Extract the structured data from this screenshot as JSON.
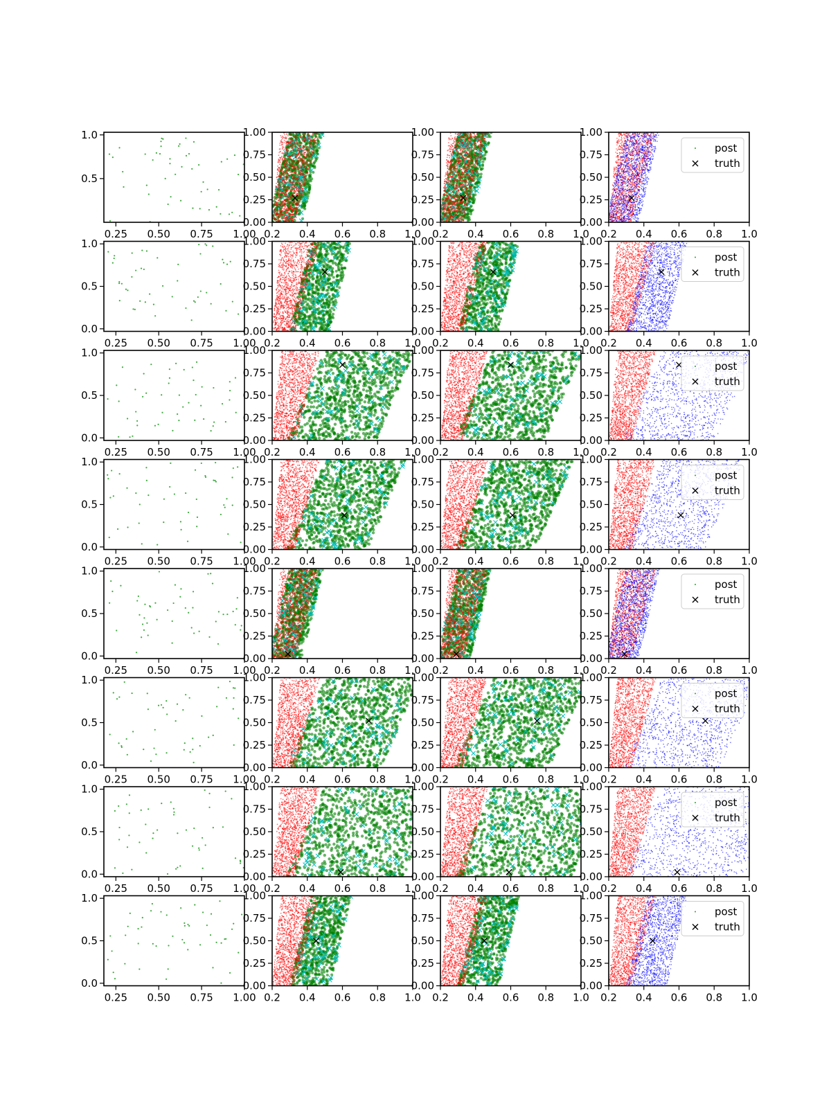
{
  "figure": {
    "background": "#ffffff"
  },
  "colors": {
    "scatter_green": "#2ca02c",
    "green": "#008000",
    "red": "#ff0000",
    "blue": "#0000ff",
    "cyan": "#00bfbf",
    "truth": "#000000",
    "axis": "#000000"
  },
  "legend": {
    "post_label": "post",
    "truth_label": "truth",
    "placement": "upper right"
  },
  "axes": {
    "col0": {
      "xlim": [
        0.18,
        1.0
      ],
      "xticks": [
        0.25,
        0.5,
        0.75,
        1.0
      ],
      "xtick_labels": [
        "0.25",
        "0.50",
        "0.75",
        "1.00"
      ],
      "ylim_first": [
        0.0,
        1.03
      ],
      "ylim_other": [
        -0.03,
        1.03
      ],
      "yticks_first": [
        0.5,
        1.0
      ],
      "ytick_labels_first": [
        "0.5",
        "1.0"
      ],
      "yticks_other": [
        0.0,
        0.5,
        1.0
      ],
      "ytick_labels_other": [
        "0.0",
        "0.5",
        "1.0"
      ]
    },
    "cols123": {
      "xlim": [
        0.2,
        1.0
      ],
      "ylim": [
        0.0,
        1.0
      ],
      "xticks": [
        0.2,
        0.4,
        0.6,
        0.8,
        1.0
      ],
      "xtick_labels": [
        "0.2",
        "0.4",
        "0.6",
        "0.8",
        "1.0"
      ],
      "yticks": [
        0.0,
        0.25,
        0.5,
        0.75,
        1.0
      ],
      "ytick_labels": [
        "0.00",
        "0.25",
        "0.50",
        "0.75",
        "1.00"
      ]
    }
  },
  "chart_data": {
    "type": "scatter",
    "layout": {
      "rows": 8,
      "cols": 4
    },
    "series_legend": [
      "post",
      "truth"
    ],
    "rows": [
      {
        "truth": [
          0.33,
          0.27
        ],
        "post_band": [
          0.24,
          0.4
        ],
        "wide": false,
        "legend": true
      },
      {
        "truth": [
          0.5,
          0.66
        ],
        "post_band": [
          0.36,
          0.56
        ],
        "wide": false,
        "legend": true
      },
      {
        "truth": [
          0.6,
          0.84
        ],
        "post_band": [
          0.39,
          0.82
        ],
        "wide": true,
        "legend": true
      },
      {
        "truth": [
          0.61,
          0.38
        ],
        "post_band": [
          0.39,
          0.77
        ],
        "wide": true,
        "legend": true
      },
      {
        "truth": [
          0.29,
          0.05
        ],
        "post_band": [
          0.24,
          0.4
        ],
        "wide": false,
        "legend": true
      },
      {
        "truth": [
          0.75,
          0.52
        ],
        "post_band": [
          0.39,
          0.85
        ],
        "wide": true,
        "legend": true
      },
      {
        "truth": [
          0.59,
          0.05
        ],
        "post_band": [
          0.39,
          0.98
        ],
        "wide": true,
        "legend": true
      },
      {
        "truth": [
          0.45,
          0.5
        ],
        "post_band": [
          0.36,
          0.56
        ],
        "wide": false,
        "legend": true
      }
    ]
  }
}
